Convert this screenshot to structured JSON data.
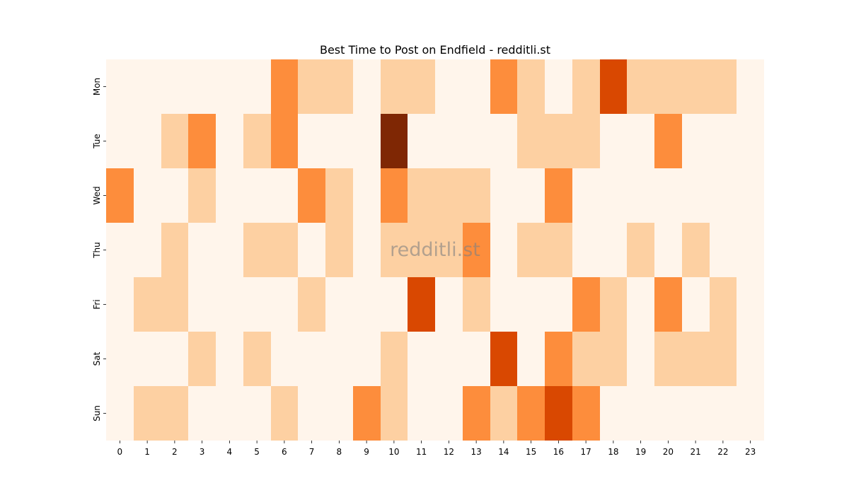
{
  "chart_data": {
    "type": "heatmap",
    "title": "Best Time to Post on Endfield - redditli.st",
    "watermark": "redditli.st",
    "xlabel": "",
    "ylabel": "",
    "x_labels": [
      "0",
      "1",
      "2",
      "3",
      "4",
      "5",
      "6",
      "7",
      "8",
      "9",
      "10",
      "11",
      "12",
      "13",
      "14",
      "15",
      "16",
      "17",
      "18",
      "19",
      "20",
      "21",
      "22",
      "23"
    ],
    "y_labels": [
      "Mon",
      "Tue",
      "Wed",
      "Thu",
      "Fri",
      "Sat",
      "Sun"
    ],
    "values": [
      [
        0,
        0,
        0,
        0,
        0,
        0,
        2,
        1,
        1,
        0,
        1,
        1,
        0,
        0,
        2,
        1,
        0,
        1,
        3,
        1,
        1,
        1,
        1,
        0
      ],
      [
        0,
        0,
        1,
        2,
        0,
        1,
        2,
        0,
        0,
        0,
        4,
        0,
        0,
        0,
        0,
        1,
        1,
        1,
        0,
        0,
        2,
        0,
        0,
        0
      ],
      [
        2,
        0,
        0,
        1,
        0,
        0,
        0,
        2,
        1,
        0,
        2,
        1,
        1,
        1,
        0,
        0,
        2,
        0,
        0,
        0,
        0,
        0,
        0,
        0
      ],
      [
        0,
        0,
        1,
        0,
        0,
        1,
        1,
        0,
        1,
        0,
        1,
        1,
        1,
        2,
        0,
        1,
        1,
        0,
        0,
        1,
        0,
        1,
        0,
        0
      ],
      [
        0,
        1,
        1,
        0,
        0,
        0,
        0,
        1,
        0,
        0,
        0,
        3,
        0,
        1,
        0,
        0,
        0,
        2,
        1,
        0,
        2,
        0,
        1,
        0
      ],
      [
        0,
        0,
        0,
        1,
        0,
        1,
        0,
        0,
        0,
        0,
        1,
        0,
        0,
        0,
        3,
        0,
        2,
        1,
        1,
        0,
        1,
        1,
        1,
        0
      ],
      [
        0,
        1,
        1,
        0,
        0,
        0,
        1,
        0,
        0,
        2,
        1,
        0,
        0,
        2,
        1,
        2,
        3,
        2,
        0,
        0,
        0,
        0,
        0,
        0
      ]
    ],
    "value_range": [
      0,
      4
    ],
    "colormap": [
      "#fff5eb",
      "#fdd0a2",
      "#fd8d3c",
      "#d94801",
      "#7f2704"
    ],
    "legend": "none",
    "grid": false
  }
}
